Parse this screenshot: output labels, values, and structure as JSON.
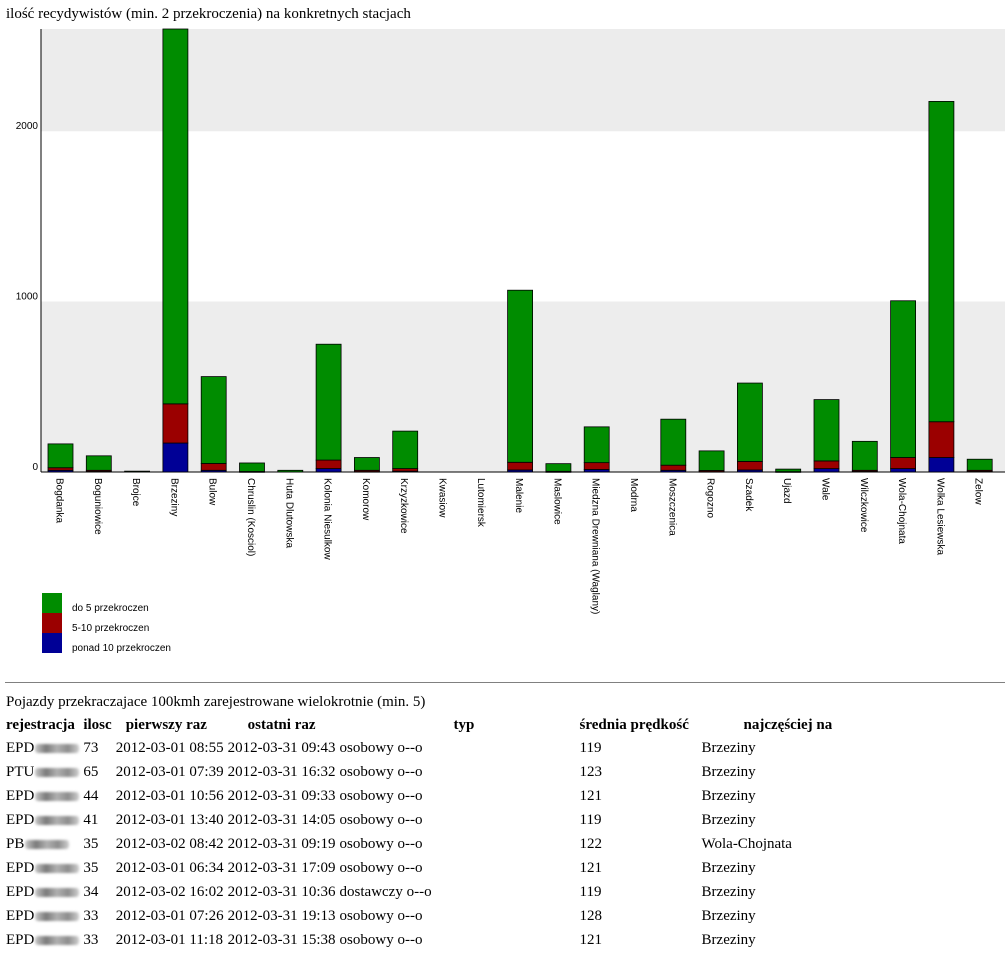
{
  "chart_data": {
    "type": "bar",
    "title": "ilość recydywistów (min. 2 przekroczenia) na konkretnych stacjach",
    "yticks": [
      "0",
      "1000",
      "2000"
    ],
    "ylim": [
      0,
      2600
    ],
    "stacked": true,
    "grid": "alternating horizontal bands",
    "legend_position": "bottom-left",
    "categories": [
      "Bogdanka",
      "Boguniowice",
      "Brojce",
      "Brzeziny",
      "Bulow",
      "Chruslin (Kosciol)",
      "Huta Dlutowska",
      "Kolonia Niesulkow",
      "Komorow",
      "Krzyzkowice",
      "Kwasiow",
      "Lutomiersk",
      "Malenie",
      "Maslowice",
      "Miedzna Drewniana (Waglany)",
      "Modrna",
      "Moszczenica",
      "Rogozno",
      "Szadek",
      "Ujazd",
      "Wale",
      "Wilczkowice",
      "Wola-Chojnata",
      "Wolka Lesiewska",
      "Zelow"
    ],
    "series": [
      {
        "name": "do 5 przekroczen",
        "color": "#008c00",
        "values": [
          140,
          85,
          5,
          2200,
          510,
          50,
          10,
          680,
          75,
          220,
          0,
          0,
          1010,
          45,
          210,
          0,
          270,
          115,
          460,
          15,
          360,
          170,
          920,
          1880,
          65
        ]
      },
      {
        "name": "5-10 przekroczen",
        "color": "#9b0000",
        "values": [
          15,
          7,
          0,
          230,
          40,
          2,
          0,
          50,
          8,
          15,
          0,
          0,
          45,
          3,
          40,
          0,
          30,
          7,
          50,
          1,
          45,
          7,
          65,
          210,
          7
        ]
      },
      {
        "name": "ponad 10 przekroczen",
        "color": "#000096",
        "values": [
          10,
          3,
          0,
          170,
          10,
          1,
          0,
          20,
          2,
          5,
          0,
          0,
          12,
          1,
          15,
          0,
          10,
          2,
          12,
          1,
          20,
          3,
          20,
          85,
          3
        ]
      }
    ]
  },
  "table": {
    "title": "Pojazdy przekraczajace 100kmh zarejestrowane wielokrotnie (min. 5)",
    "headers": [
      "rejestracja",
      "ilosc",
      "pierwszy raz",
      "ostatni raz",
      "typ",
      "średnia prędkość",
      "najczęściej na"
    ],
    "rows": [
      {
        "plate": "EPD",
        "count": "73",
        "first": "2012-03-01 08:55",
        "last": "2012-03-31 09:43",
        "type": "osobowy o--o",
        "avg": "119",
        "station": "Brzeziny"
      },
      {
        "plate": "PTU",
        "count": "65",
        "first": "2012-03-01 07:39",
        "last": "2012-03-31 16:32",
        "type": "osobowy o--o",
        "avg": "123",
        "station": "Brzeziny"
      },
      {
        "plate": "EPD",
        "count": "44",
        "first": "2012-03-01 10:56",
        "last": "2012-03-31 09:33",
        "type": "osobowy o--o",
        "avg": "121",
        "station": "Brzeziny"
      },
      {
        "plate": "EPD",
        "count": "41",
        "first": "2012-03-01 13:40",
        "last": "2012-03-31 14:05",
        "type": "osobowy o--o",
        "avg": "119",
        "station": "Brzeziny"
      },
      {
        "plate": "PB",
        "count": "35",
        "first": "2012-03-02 08:42",
        "last": "2012-03-31 09:19",
        "type": "osobowy o--o",
        "avg": "122",
        "station": "Wola-Chojnata"
      },
      {
        "plate": "EPD",
        "count": "35",
        "first": "2012-03-01 06:34",
        "last": "2012-03-31 17:09",
        "type": "osobowy o--o",
        "avg": "121",
        "station": "Brzeziny"
      },
      {
        "plate": "EPD",
        "count": "34",
        "first": "2012-03-02 16:02",
        "last": "2012-03-31 10:36",
        "type": "dostawczy o--o",
        "avg": "119",
        "station": "Brzeziny"
      },
      {
        "plate": "EPD",
        "count": "33",
        "first": "2012-03-01 07:26",
        "last": "2012-03-31 19:13",
        "type": "osobowy o--o",
        "avg": "128",
        "station": "Brzeziny"
      },
      {
        "plate": "EPD",
        "count": "33",
        "first": "2012-03-01 11:18",
        "last": "2012-03-31 15:38",
        "type": "osobowy o--o",
        "avg": "121",
        "station": "Brzeziny"
      }
    ]
  }
}
